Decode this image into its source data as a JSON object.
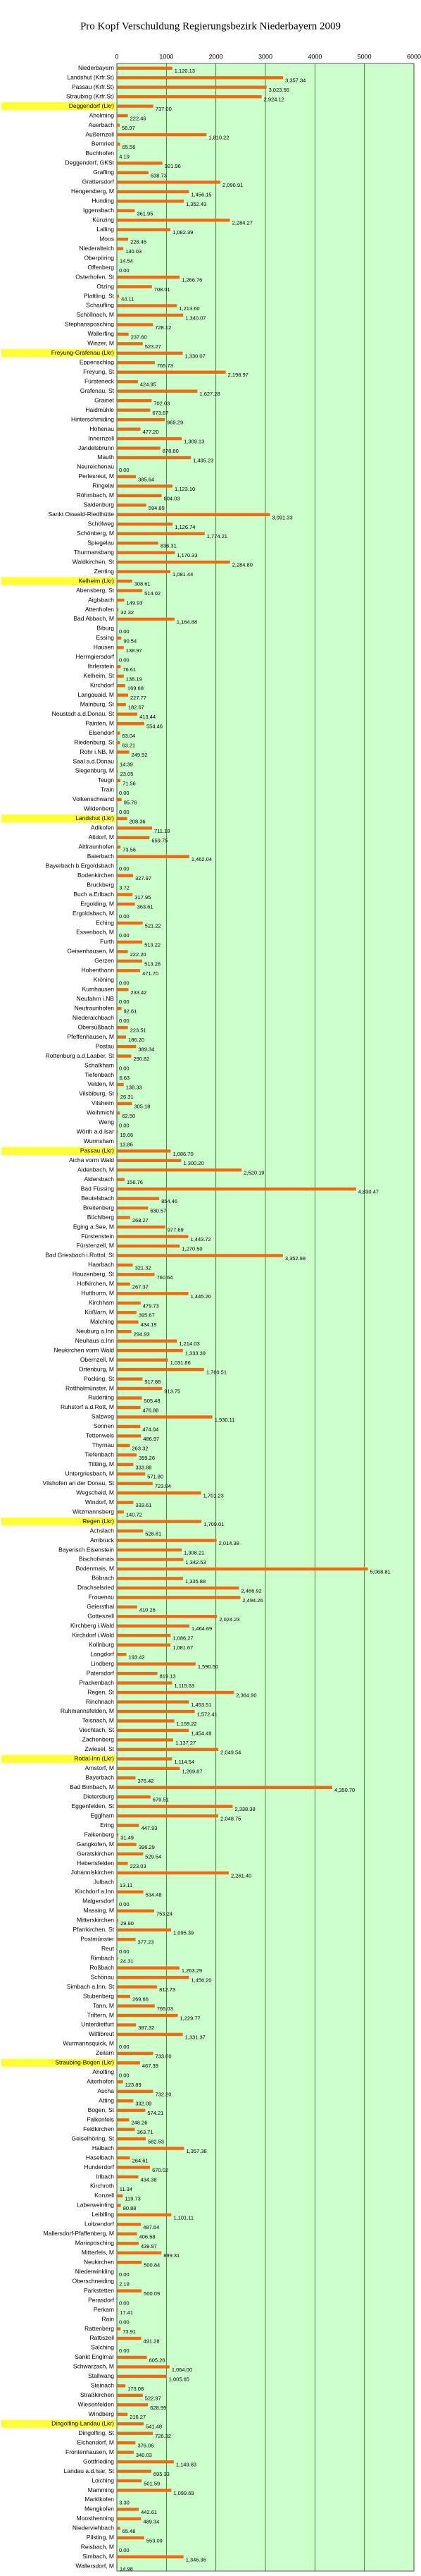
{
  "chart_data": {
    "type": "barh",
    "title": "Pro Kopf Verschuldung Regierungsbezirk Niederbayern 2009",
    "categories": [
      "Niederbayern",
      "Landshut (Krfr.St)",
      "Passau (Krfr.St)",
      "Straubing (Krfr.St)",
      "Deggendorf (Lkr)",
      "Aholming",
      "Auerbach",
      "Außernzell",
      "Bernried",
      "Buchhofen",
      "Deggendorf, GKSt",
      "Grafling",
      "Grattersdorf",
      "Hengersberg, M",
      "Hunding",
      "Iggensbach",
      "Künzing",
      "Lalling",
      "Moos",
      "Niederalteich",
      "Oberpöring",
      "Offenberg",
      "Osterhofen, St",
      "Otzing",
      "Plattling, St",
      "Schaufling",
      "Schöllnach, M",
      "Stephansposching",
      "Wallerfing",
      "Winzer, M",
      "Freyung-Grafenau (Lkr)",
      "Eppenschlag",
      "Freyung, St",
      "Fürsteneck",
      "Grafenau, St",
      "Grainet",
      "Haidmühle",
      "Hinterschmiding",
      "Hohenau",
      "Innernzell",
      "Jandelsbrunn",
      "Mauth",
      "Neureichenau",
      "Perlesreut, M",
      "Ringelai",
      "Röhrnbach, M",
      "Saldenburg",
      "Sankt Oswald-Riedlhütte",
      "Schöfweg",
      "Schönberg, M",
      "Spiegelau",
      "Thurmansbang",
      "Waldkirchen, St",
      "Zenting",
      "Kelheim (Lkr)",
      "Abensberg, St",
      "Aiglsbach",
      "Attenhofen",
      "Bad Abbach, M",
      "Biburg",
      "Essing",
      "Hausen",
      "Herrngiersdorf",
      "Ihrlerstein",
      "Kelheim, St",
      "Kirchdorf",
      "Langquaid, M",
      "Mainburg, St",
      "Neustadt a.d.Donau, St",
      "Painten, M",
      "Elsendorf",
      "Riedenburg, St",
      "Rohr i.NB, M",
      "Saal a.d.Donau",
      "Siegenburg, M",
      "Teugn",
      "Train",
      "Volkenschwand",
      "Wildenberg",
      "Landshut (Lkr)",
      "Adlkofen",
      "Altdorf, M",
      "Altfraunhofen",
      "Baierbach",
      "Bayerbach b.Ergoldsbach",
      "Bodenkirchen",
      "Bruckberg",
      "Buch a.Erlbach",
      "Ergolding, M",
      "Ergoldsbach, M",
      "Eching",
      "Essenbach, M",
      "Furth",
      "Geisenhausen, M",
      "Gerzen",
      "Hohenthann",
      "Kröning",
      "Kumhausen",
      "Neufahrn i.NB",
      "Neufraunhofen",
      "Niederaichbach",
      "Obersüßbach",
      "Pfeffenhausen, M",
      "Postau",
      "Rottenburg a.d.Laaber, St",
      "Schalkham",
      "Tiefenbach",
      "Velden, M",
      "Vilsbiburg, St",
      "Vilsheim",
      "Weihmichl",
      "Weng",
      "Wörth a.d.Isar",
      "Wurmsham",
      "Passau (Lkr)",
      "Aicha vorm Wald",
      "Aidenbach, M",
      "Aldersbach",
      "Bad Füssing",
      "Beutelsbach",
      "Breitenberg",
      "Büchlberg",
      "Eging a.See, M",
      "Fürstenstein",
      "Fürstenzell, M",
      "Bad Griesbach i.Rottal, St",
      "Haarbach",
      "Hauzenberg, St",
      "Hofkirchen, M",
      "Hutthurm, M",
      "Kirchham",
      "Kößlarn, M",
      "Malching",
      "Neuburg a.Inn",
      "Neuhaus a.Inn",
      "Neukirchen vorm Wald",
      "Obernzell, M",
      "Ortenburg, M",
      "Pocking, St",
      "Rotthalmünster, M",
      "Ruderting",
      "Ruhstorf a.d.Rott, M",
      "Salzweg",
      "Sonnen",
      "Tettenweis",
      "Thyrnau",
      "Tiefenbach",
      "Tittling, M",
      "Untergriesbach, M",
      "Vilshofen an der Donau, St",
      "Wegscheid, M",
      "Windorf, M",
      "Witzmannsberg",
      "Regen (Lkr)",
      "Achslach",
      "Arnbruck",
      "Bayerisch Eisenstein",
      "Bischofsmais",
      "Bodenmais, M",
      "Böbrach",
      "Drachselsried",
      "Frauenau",
      "Geiersthal",
      "Gotteszell",
      "Kirchberg i.Wald",
      "Kirchdorf i.Wald",
      "Kollnburg",
      "Langdorf",
      "Lindberg",
      "Patersdorf",
      "Prackenbach",
      "Regen, St",
      "Rinchnach",
      "Ruhmannsfelden, M",
      "Teisnach, M",
      "Viechtach, St",
      "Zachenberg",
      "Zwiesel, St",
      "Rottal-Inn (Lkr)",
      "Arnstorf, M",
      "Bayerbach",
      "Bad Birnbach, M",
      "Dietersburg",
      "Eggenfelden, St",
      "Egglham",
      "Ering",
      "Falkenberg",
      "Gangkofen, M",
      "Geratskirchen",
      "Hebertsfelden",
      "Johanniskirchen",
      "Julbach",
      "Kirchdorf a.Inn",
      "Malgersdorf",
      "Massing, M",
      "Mitterskirchen",
      "Pfarrkirchen, St",
      "Postmünster",
      "Reut",
      "Rimbach",
      "Roßbach",
      "Schönau",
      "Simbach a.Inn, St",
      "Stubenberg",
      "Tann, M",
      "Triftern, M",
      "Unterdietfurt",
      "Wittibreut",
      "Wurmannsquick, M",
      "Zeilarn",
      "Straubing-Bogen (Lkr)",
      "Aholfing",
      "Aiterhofen",
      "Ascha",
      "Atting",
      "Bogen, St",
      "Falkenfels",
      "Feldkirchen",
      "Geiselhöring, St",
      "Haibach",
      "Haselbach",
      "Hunderdorf",
      "Irlbach",
      "Kirchroth",
      "Konzell",
      "Laberweinting",
      "Leiblfing",
      "Loitzendorf",
      "Mallersdorf-Pfaffenberg, M",
      "Mariaposching",
      "Mitterfels, M",
      "Neukirchen",
      "Niederwinkling",
      "Oberschneiding",
      "Parkstetten",
      "Perasdorf",
      "Perkam",
      "Rain",
      "Rattenberg",
      "Rattiszell",
      "Salching",
      "Sankt Englmar",
      "Schwarzach, M",
      "Stallwang",
      "Steinach",
      "Straßkirchen",
      "Wiesenfelden",
      "Windberg",
      "Dingolfing-Landau (Lkr)",
      "Dingolfing, St",
      "Eichendorf, M",
      "Frontenhausen, M",
      "Gottfrieding",
      "Landau a.d.Isar, St",
      "Loiching",
      "Mamming",
      "Marklkofen",
      "Mengkofen",
      "Moosthenning",
      "Niederviehbach",
      "Pilsting, M",
      "Reisbach, M",
      "Simbach, M",
      "Wallersdorf, M"
    ],
    "values": [
      1120.13,
      3357.34,
      3023.56,
      2924.12,
      737,
      222.46,
      56.97,
      1810.22,
      65.56,
      4.19,
      921.96,
      638.73,
      2090.91,
      1456.15,
      1352.43,
      361.95,
      2284.27,
      1082.39,
      228.46,
      130.03,
      14.54,
      0,
      1266.76,
      708.01,
      44.11,
      1213.6,
      1340.07,
      728.12,
      237.6,
      523.27,
      1330.07,
      765.73,
      2198.97,
      424.95,
      1627.28,
      702.03,
      673.67,
      969.29,
      477.2,
      1309.13,
      878.8,
      1495.23,
      0,
      385.64,
      1123.1,
      904.03,
      594.89,
      3091.33,
      1126.74,
      1774.21,
      836.31,
      1170.33,
      2284.8,
      1081.44,
      308.61,
      514.02,
      149.93,
      32.32,
      1164.88,
      0,
      90.54,
      138.97,
      0,
      76.61,
      138.19,
      169.68,
      227.77,
      182.67,
      413.44,
      554.46,
      63.04,
      63.21,
      249.92,
      14.39,
      23.05,
      71.56,
      0,
      95.76,
      0,
      208.36,
      711.18,
      659.75,
      73.56,
      1462.04,
      0,
      327.97,
      3.72,
      317.95,
      363.61,
      0,
      521.22,
      0,
      513.22,
      222.2,
      513.28,
      471.7,
      0,
      233.42,
      0,
      92.61,
      0,
      223.51,
      186.2,
      389.34,
      290.82,
      0,
      6.63,
      138.33,
      26.31,
      305.18,
      62.5,
      0,
      19.66,
      13.86,
      1086.7,
      1300.2,
      2520.19,
      156.76,
      4830.47,
      854.46,
      630.57,
      268.27,
      977.69,
      1443.72,
      1270.5,
      3352.98,
      321.32,
      760.64,
      267.37,
      1445.2,
      479.73,
      395.67,
      434.19,
      294.93,
      1214.03,
      1333.39,
      1031.86,
      1760.51,
      517.88,
      913.75,
      505.48,
      476.88,
      1930.11,
      474.04,
      486.97,
      263.32,
      399.26,
      333.88,
      571.8,
      723.04,
      1701.23,
      333.61,
      140.72,
      1709.01,
      528.81,
      2014.38,
      1308.21,
      1342.53,
      5068.81,
      1335.88,
      2466.92,
      2494.26,
      410.26,
      2024.23,
      1464.69,
      1086.27,
      1081.67,
      193.42,
      1590.5,
      819.13,
      1115.63,
      2364.9,
      1453.51,
      1572.41,
      1159.22,
      1454.49,
      1137.27,
      2049.54,
      1114.54,
      1269.87,
      376.42,
      4350.7,
      679.51,
      2338.38,
      2048.75,
      447.93,
      31.49,
      396.29,
      529.54,
      223.03,
      2261.4,
      13.11,
      534.48,
      0,
      753.24,
      29.9,
      1095.39,
      377.23,
      0,
      24.31,
      1263.29,
      1456.2,
      812.73,
      269.66,
      765.03,
      1229.77,
      387.32,
      1331.37,
      0,
      733,
      467.39,
      0,
      123.89,
      732.2,
      332.09,
      574.21,
      248.26,
      363.71,
      582.53,
      1357.38,
      264.61,
      670.02,
      434.38,
      11.34,
      119.73,
      80.88,
      1101.11,
      487.64,
      406.58,
      439.97,
      899.31,
      500.84,
      0,
      2.19,
      500.09,
      0,
      17.41,
      0,
      73.91,
      491.28,
      0,
      605.26,
      1064,
      1005.65,
      173.08,
      522.97,
      628.99,
      216.27,
      541.48,
      726.32,
      376.06,
      340.03,
      1149.83,
      695.33,
      501.59,
      1099.69,
      3.3,
      442.61,
      489.34,
      65.48,
      553.09,
      0,
      1346.36,
      14.98
    ],
    "value_labels": [
      "1,120.13",
      "3,357.34",
      "3,023.56",
      "2,924.12",
      "737.00",
      "222.46",
      "56.97",
      "1,810.22",
      "65.56",
      "4.19",
      "921.96",
      "638.73",
      "2,090.91",
      "1,456.15",
      "1,352.43",
      "361.95",
      "2,284.27",
      "1,082.39",
      "228.46",
      "130.03",
      "14.54",
      "0.00",
      "1,266.76",
      "708.01",
      "44.11",
      "1,213.60",
      "1,340.07",
      "728.12",
      "237.60",
      "523.27",
      "1,330.07",
      "765.73",
      "2,198.97",
      "424.95",
      "1,627.28",
      "702.03",
      "673.67",
      "969.29",
      "477.20",
      "1,309.13",
      "878.80",
      "1,495.23",
      "0.00",
      "385.64",
      "1,123.10",
      "904.03",
      "594.89",
      "3,091.33",
      "1,126.74",
      "1,774.21",
      "836.31",
      "1,170.33",
      "2,284.80",
      "1,081.44",
      "308.61",
      "514.02",
      "149.93",
      "32.32",
      "1,164.88",
      "0.00",
      "90.54",
      "138.97",
      "0.00",
      "76.61",
      "138.19",
      "169.68",
      "227.77",
      "182.67",
      "413.44",
      "554.46",
      "63.04",
      "63.21",
      "249.92",
      "14.39",
      "23.05",
      "71.56",
      "0.00",
      "95.76",
      "0.00",
      "208.36",
      "711.18",
      "659.75",
      "73.56",
      "1,462.04",
      "0.00",
      "327.97",
      "3.72",
      "317.95",
      "363.61",
      "0.00",
      "521.22",
      "0.00",
      "513.22",
      "222.20",
      "513.28",
      "471.70",
      "0.00",
      "233.42",
      "0.00",
      "92.61",
      "0.00",
      "223.51",
      "186.20",
      "389.34",
      "290.82",
      "0.00",
      "6.63",
      "138.33",
      "26.31",
      "305.18",
      "62.50",
      "0.00",
      "19.66",
      "13.86",
      "1,086.70",
      "1,300.20",
      "2,520.19",
      "156.76",
      "4,830.47",
      "854.46",
      "630.57",
      "268.27",
      "977.69",
      "1,443.72",
      "1,270.50",
      "3,352.98",
      "321.32",
      "760.64",
      "267.37",
      "1,445.20",
      "479.73",
      "395.67",
      "434.19",
      "294.93",
      "1,214.03",
      "1,333.39",
      "1,031.86",
      "1,760.51",
      "517.88",
      "913.75",
      "505.48",
      "476.88",
      "1,930.11",
      "474.04",
      "486.97",
      "263.32",
      "399.26",
      "333.88",
      "571.80",
      "723.04",
      "1,701.23",
      "333.61",
      "140.72",
      "1,709.01",
      "528.81",
      "2,014.38",
      "1,308.21",
      "1,342.53",
      "5,068.81",
      "1,335.88",
      "2,466.92",
      "2,494.26",
      "410.26",
      "2,024.23",
      "1,464.69",
      "1,086.27",
      "1,081.67",
      "193.42",
      "1,590.50",
      "819.13",
      "1,115.63",
      "2,364.90",
      "1,453.51",
      "1,572.41",
      "1,159.22",
      "1,454.49",
      "1,137.27",
      "2,049.54",
      "1,114.54",
      "1,269.87",
      "376.42",
      "4,350.70",
      "679.51",
      "2,338.38",
      "2,048.75",
      "447.93",
      "31.49",
      "396.29",
      "529.54",
      "223.03",
      "2,261.40",
      "13.11",
      "534.48",
      "0.00",
      "753.24",
      "29.90",
      "1,095.39",
      "377.23",
      "0.00",
      "24.31",
      "1,263.29",
      "1,456.20",
      "812.73",
      "269.66",
      "765.03",
      "1,229.77",
      "387.32",
      "1,331.37",
      "0.00",
      "733.00",
      "467.39",
      "0.00",
      "123.89",
      "732.20",
      "332.09",
      "574.21",
      "248.26",
      "363.71",
      "582.53",
      "1,357.38",
      "264.61",
      "670.02",
      "434.38",
      "11.34",
      "119.73",
      "80.88",
      "1,101.11",
      "487.64",
      "406.58",
      "439.97",
      "899.31",
      "500.84",
      "0.00",
      "2.19",
      "500.09",
      "0.00",
      "17.41",
      "0.00",
      "73.91",
      "491.28",
      "0.00",
      "605.26",
      "1,064.00",
      "1,005.65",
      "173.08",
      "522.97",
      "628.99",
      "216.27",
      "541.48",
      "726.32",
      "376.06",
      "340.03",
      "1,149.83",
      "695.33",
      "501.59",
      "1,099.69",
      "3.30",
      "442.61",
      "489.34",
      "65.48",
      "553.09",
      "0.00",
      "1,346.36",
      "14.98"
    ],
    "color": "#f26a10",
    "plot_background": "#ccffcc",
    "grid_color": "#1f6b1f",
    "grid": true,
    "highlight_indices": [
      4,
      30,
      54,
      79,
      114,
      153,
      178,
      210,
      248
    ],
    "highlight_color": "#ffff33",
    "xlim": [
      0,
      6000
    ],
    "xticks": [
      0,
      1000,
      2000,
      3000,
      4000,
      5000,
      6000
    ]
  }
}
